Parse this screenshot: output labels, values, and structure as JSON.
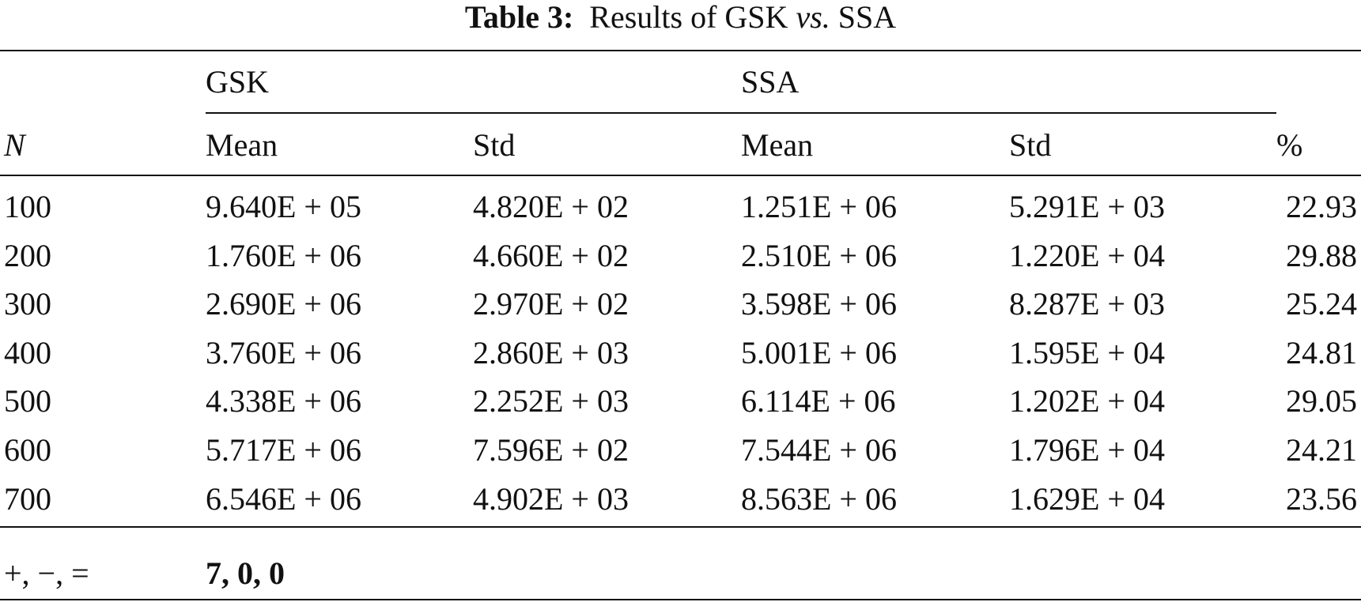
{
  "table": {
    "caption": {
      "label": "Table 3:",
      "parts": [
        "Results of GSK",
        "vs.",
        "SSA"
      ]
    },
    "group_headers": [
      "GSK",
      "SSA"
    ],
    "headers": [
      "N",
      "Mean",
      "Std",
      "Mean",
      "Std",
      "%"
    ],
    "rows": [
      [
        "100",
        "9.640E + 05",
        "4.820E + 02",
        "1.251E + 06",
        "5.291E + 03",
        "22.93"
      ],
      [
        "200",
        "1.760E + 06",
        "4.660E + 02",
        "2.510E + 06",
        "1.220E + 04",
        "29.88"
      ],
      [
        "300",
        "2.690E + 06",
        "2.970E + 02",
        "3.598E + 06",
        "8.287E + 03",
        "25.24"
      ],
      [
        "400",
        "3.760E + 06",
        "2.860E + 03",
        "5.001E + 06",
        "1.595E + 04",
        "24.81"
      ],
      [
        "500",
        "4.338E + 06",
        "2.252E + 03",
        "6.114E + 06",
        "1.202E + 04",
        "29.05"
      ],
      [
        "600",
        "5.717E + 06",
        "7.596E + 02",
        "7.544E + 06",
        "1.796E + 04",
        "24.21"
      ],
      [
        "700",
        "6.546E + 06",
        "4.902E + 03",
        "8.563E + 06",
        "1.629E + 04",
        "23.56"
      ]
    ],
    "footer": [
      "+, −, =",
      "7, 0, 0"
    ]
  }
}
